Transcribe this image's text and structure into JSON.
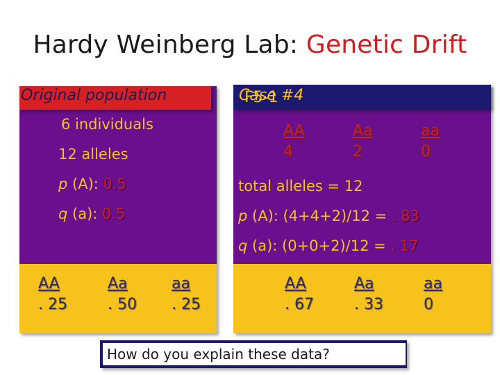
{
  "title": {
    "main": "Hardy Weinberg Lab: ",
    "accent": "Genetic Drift"
  },
  "left": {
    "header": "Original population",
    "individuals": "6 individuals",
    "alleles": "12 alleles",
    "p_label": "p",
    "p_rest": " (A): ",
    "p_value": "0.5",
    "q_label": "q",
    "q_rest": " (a): ",
    "q_value": "0.5",
    "genotypes": [
      {
        "label": "AA",
        "value": ". 25"
      },
      {
        "label": "Aa",
        "value": ". 50"
      },
      {
        "label": "aa",
        "value": ". 25"
      }
    ]
  },
  "right": {
    "header_case": "Case #4",
    "header_code": "F5-1",
    "counts": [
      {
        "label": "AA",
        "value": "4"
      },
      {
        "label": "Aa",
        "value": "2"
      },
      {
        "label": "aa",
        "value": "0"
      }
    ],
    "total_alleles": "total alleles = 12",
    "p_label": "p",
    "p_rest": " (A): (4+4+2)/12 = ",
    "p_value": ". 83",
    "q_label": "q",
    "q_rest": " (a): (0+0+2)/12 = ",
    "q_value": ". 17",
    "genotypes": [
      {
        "label": "AA",
        "value": ". 67"
      },
      {
        "label": "Aa",
        "value": ". 33"
      },
      {
        "label": "aa",
        "value": "0"
      }
    ]
  },
  "question": "How do you explain these data?",
  "colors": {
    "purple": "#6a0f8e",
    "gold": "#f7c21b",
    "red": "#cc1f1f",
    "navy": "#1b1a6e"
  }
}
